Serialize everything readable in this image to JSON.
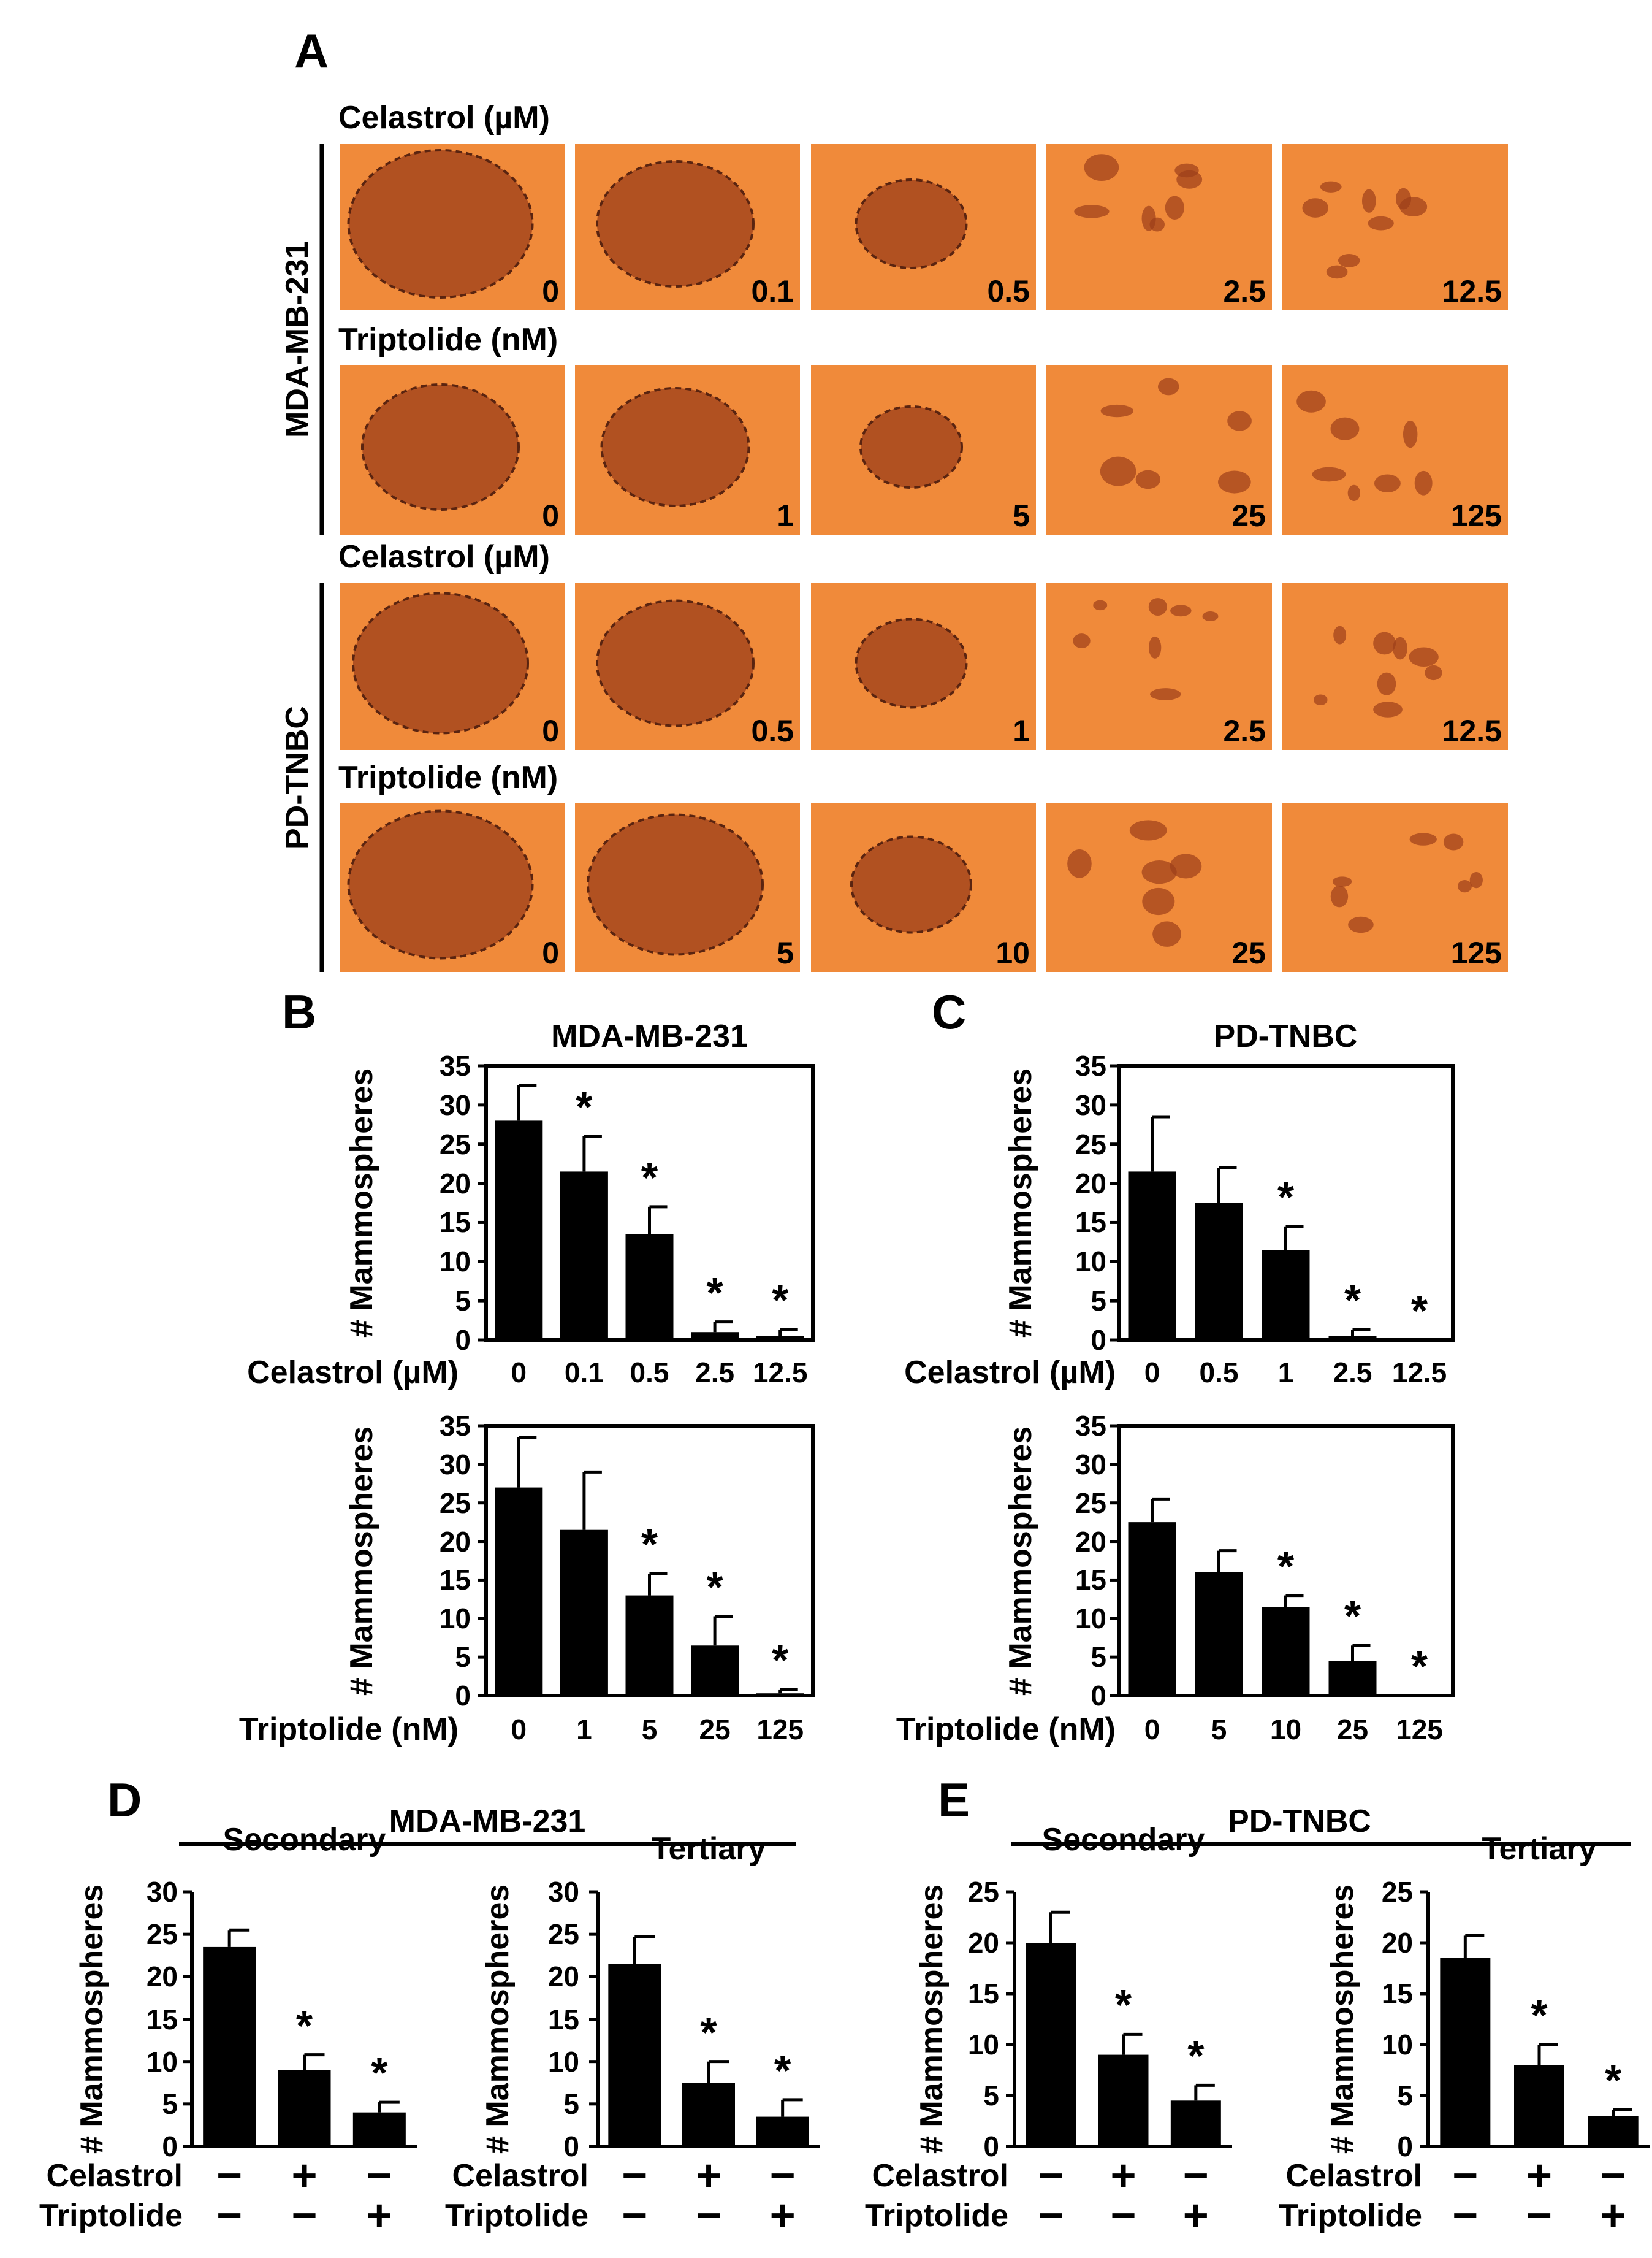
{
  "panel_a": {
    "letter": "A",
    "groups": [
      {
        "cell_line": "MDA-MB-231",
        "rows": [
          {
            "drug_label": "Celastrol (µM)",
            "doses": [
              "0",
              "0.1",
              "0.5",
              "2.5",
              "12.5"
            ]
          },
          {
            "drug_label": "Triptolide (nM)",
            "doses": [
              "0",
              "1",
              "5",
              "25",
              "125"
            ]
          }
        ]
      },
      {
        "cell_line": "PD-TNBC",
        "rows": [
          {
            "drug_label": "Celastrol (µM)",
            "doses": [
              "0",
              "0.5",
              "1",
              "2.5",
              "12.5"
            ]
          },
          {
            "drug_label": "Triptolide (nM)",
            "doses": [
              "0",
              "5",
              "10",
              "25",
              "125"
            ]
          }
        ]
      }
    ],
    "colors": {
      "background": "#f08a3a",
      "cells": "#9c3e1a"
    }
  },
  "letters": {
    "b": "B",
    "c": "C",
    "d": "D",
    "e": "E"
  },
  "panel_d_header": "MDA-MB-231",
  "panel_e_header": "PD-TNBC",
  "significance_mark": "*",
  "chart_data": [
    {
      "id": "B1",
      "panel": "B",
      "type": "bar",
      "title": "MDA-MB-231",
      "ylabel": "# Mammospheres",
      "xlabel": "Celastrol (µM)",
      "categories": [
        "0",
        "0.1",
        "0.5",
        "2.5",
        "12.5"
      ],
      "values": [
        28,
        21.5,
        13.5,
        1,
        0.5
      ],
      "errors": [
        4.5,
        4.5,
        3.5,
        1.3,
        0.8
      ],
      "significant": [
        false,
        true,
        true,
        true,
        true
      ],
      "ylim": [
        0,
        35
      ],
      "yticks": [
        "0",
        "5",
        "10",
        "15",
        "20",
        "25",
        "30",
        "35"
      ]
    },
    {
      "id": "C1",
      "panel": "C",
      "type": "bar",
      "title": "PD-TNBC",
      "ylabel": "# Mammospheres",
      "xlabel": "Celastrol (µM)",
      "categories": [
        "0",
        "0.5",
        "1",
        "2.5",
        "12.5"
      ],
      "values": [
        21.5,
        17.5,
        11.5,
        0.5,
        0
      ],
      "errors": [
        7,
        4.5,
        3,
        0.8,
        0
      ],
      "significant": [
        false,
        false,
        true,
        true,
        true
      ],
      "ylim": [
        0,
        35
      ],
      "yticks": [
        "0",
        "5",
        "10",
        "15",
        "20",
        "25",
        "30",
        "35"
      ]
    },
    {
      "id": "B2",
      "panel": "B",
      "type": "bar",
      "title": "",
      "ylabel": "# Mammospheres",
      "xlabel": "Triptolide (nM)",
      "categories": [
        "0",
        "1",
        "5",
        "25",
        "125"
      ],
      "values": [
        27,
        21.5,
        13,
        6.5,
        0.3
      ],
      "errors": [
        6.5,
        7.5,
        2.8,
        3.8,
        0.5
      ],
      "significant": [
        false,
        false,
        true,
        true,
        true
      ],
      "ylim": [
        0,
        35
      ],
      "yticks": [
        "0",
        "5",
        "10",
        "15",
        "20",
        "25",
        "30",
        "35"
      ]
    },
    {
      "id": "C2",
      "panel": "C",
      "type": "bar",
      "title": "",
      "ylabel": "# Mammospheres",
      "xlabel": "Triptolide (nM)",
      "categories": [
        "0",
        "5",
        "10",
        "25",
        "125"
      ],
      "values": [
        22.5,
        16,
        11.5,
        4.5,
        0
      ],
      "errors": [
        3,
        2.8,
        1.5,
        2,
        0
      ],
      "significant": [
        false,
        false,
        true,
        true,
        true
      ],
      "ylim": [
        0,
        35
      ],
      "yticks": [
        "0",
        "5",
        "10",
        "15",
        "20",
        "25",
        "30",
        "35"
      ]
    },
    {
      "id": "D1",
      "panel": "D",
      "type": "bar",
      "title": "Secondary",
      "ylabel": "# Mammospheres",
      "rows": [
        "Celastrol",
        "Triptolide"
      ],
      "signs": [
        [
          "−",
          "+",
          "−"
        ],
        [
          "−",
          "−",
          "+"
        ]
      ],
      "values": [
        23.5,
        9,
        4
      ],
      "errors": [
        2,
        1.8,
        1.2
      ],
      "significant": [
        false,
        true,
        true
      ],
      "ylim": [
        0,
        30
      ],
      "yticks": [
        "0",
        "5",
        "10",
        "15",
        "20",
        "25",
        "30"
      ]
    },
    {
      "id": "D2",
      "panel": "D",
      "type": "bar",
      "title": "Tertiary",
      "ylabel": "# Mammospheres",
      "rows": [
        "Celastrol",
        "Triptolide"
      ],
      "signs": [
        [
          "−",
          "+",
          "−"
        ],
        [
          "−",
          "−",
          "+"
        ]
      ],
      "values": [
        21.5,
        7.5,
        3.5
      ],
      "errors": [
        3.2,
        2.5,
        2
      ],
      "significant": [
        false,
        true,
        true
      ],
      "ylim": [
        0,
        30
      ],
      "yticks": [
        "0",
        "5",
        "10",
        "15",
        "20",
        "25",
        "30"
      ]
    },
    {
      "id": "E1",
      "panel": "E",
      "type": "bar",
      "title": "Secondary",
      "ylabel": "# Mammospheres",
      "rows": [
        "Celastrol",
        "Triptolide"
      ],
      "signs": [
        [
          "−",
          "+",
          "−"
        ],
        [
          "−",
          "−",
          "+"
        ]
      ],
      "values": [
        20,
        9,
        4.5
      ],
      "errors": [
        3,
        2,
        1.5
      ],
      "significant": [
        false,
        true,
        true
      ],
      "ylim": [
        0,
        25
      ],
      "yticks": [
        "0",
        "5",
        "10",
        "15",
        "20",
        "25"
      ]
    },
    {
      "id": "E2",
      "panel": "E",
      "type": "bar",
      "title": "Tertiary",
      "ylabel": "# Mammospheres",
      "rows": [
        "Celastrol",
        "Triptolide"
      ],
      "signs": [
        [
          "−",
          "+",
          "−"
        ],
        [
          "−",
          "−",
          "+"
        ]
      ],
      "values": [
        18.5,
        8,
        3
      ],
      "errors": [
        2.2,
        2,
        0.6
      ],
      "significant": [
        false,
        true,
        true
      ],
      "ylim": [
        0,
        25
      ],
      "yticks": [
        "0",
        "5",
        "10",
        "15",
        "20",
        "25"
      ]
    }
  ]
}
